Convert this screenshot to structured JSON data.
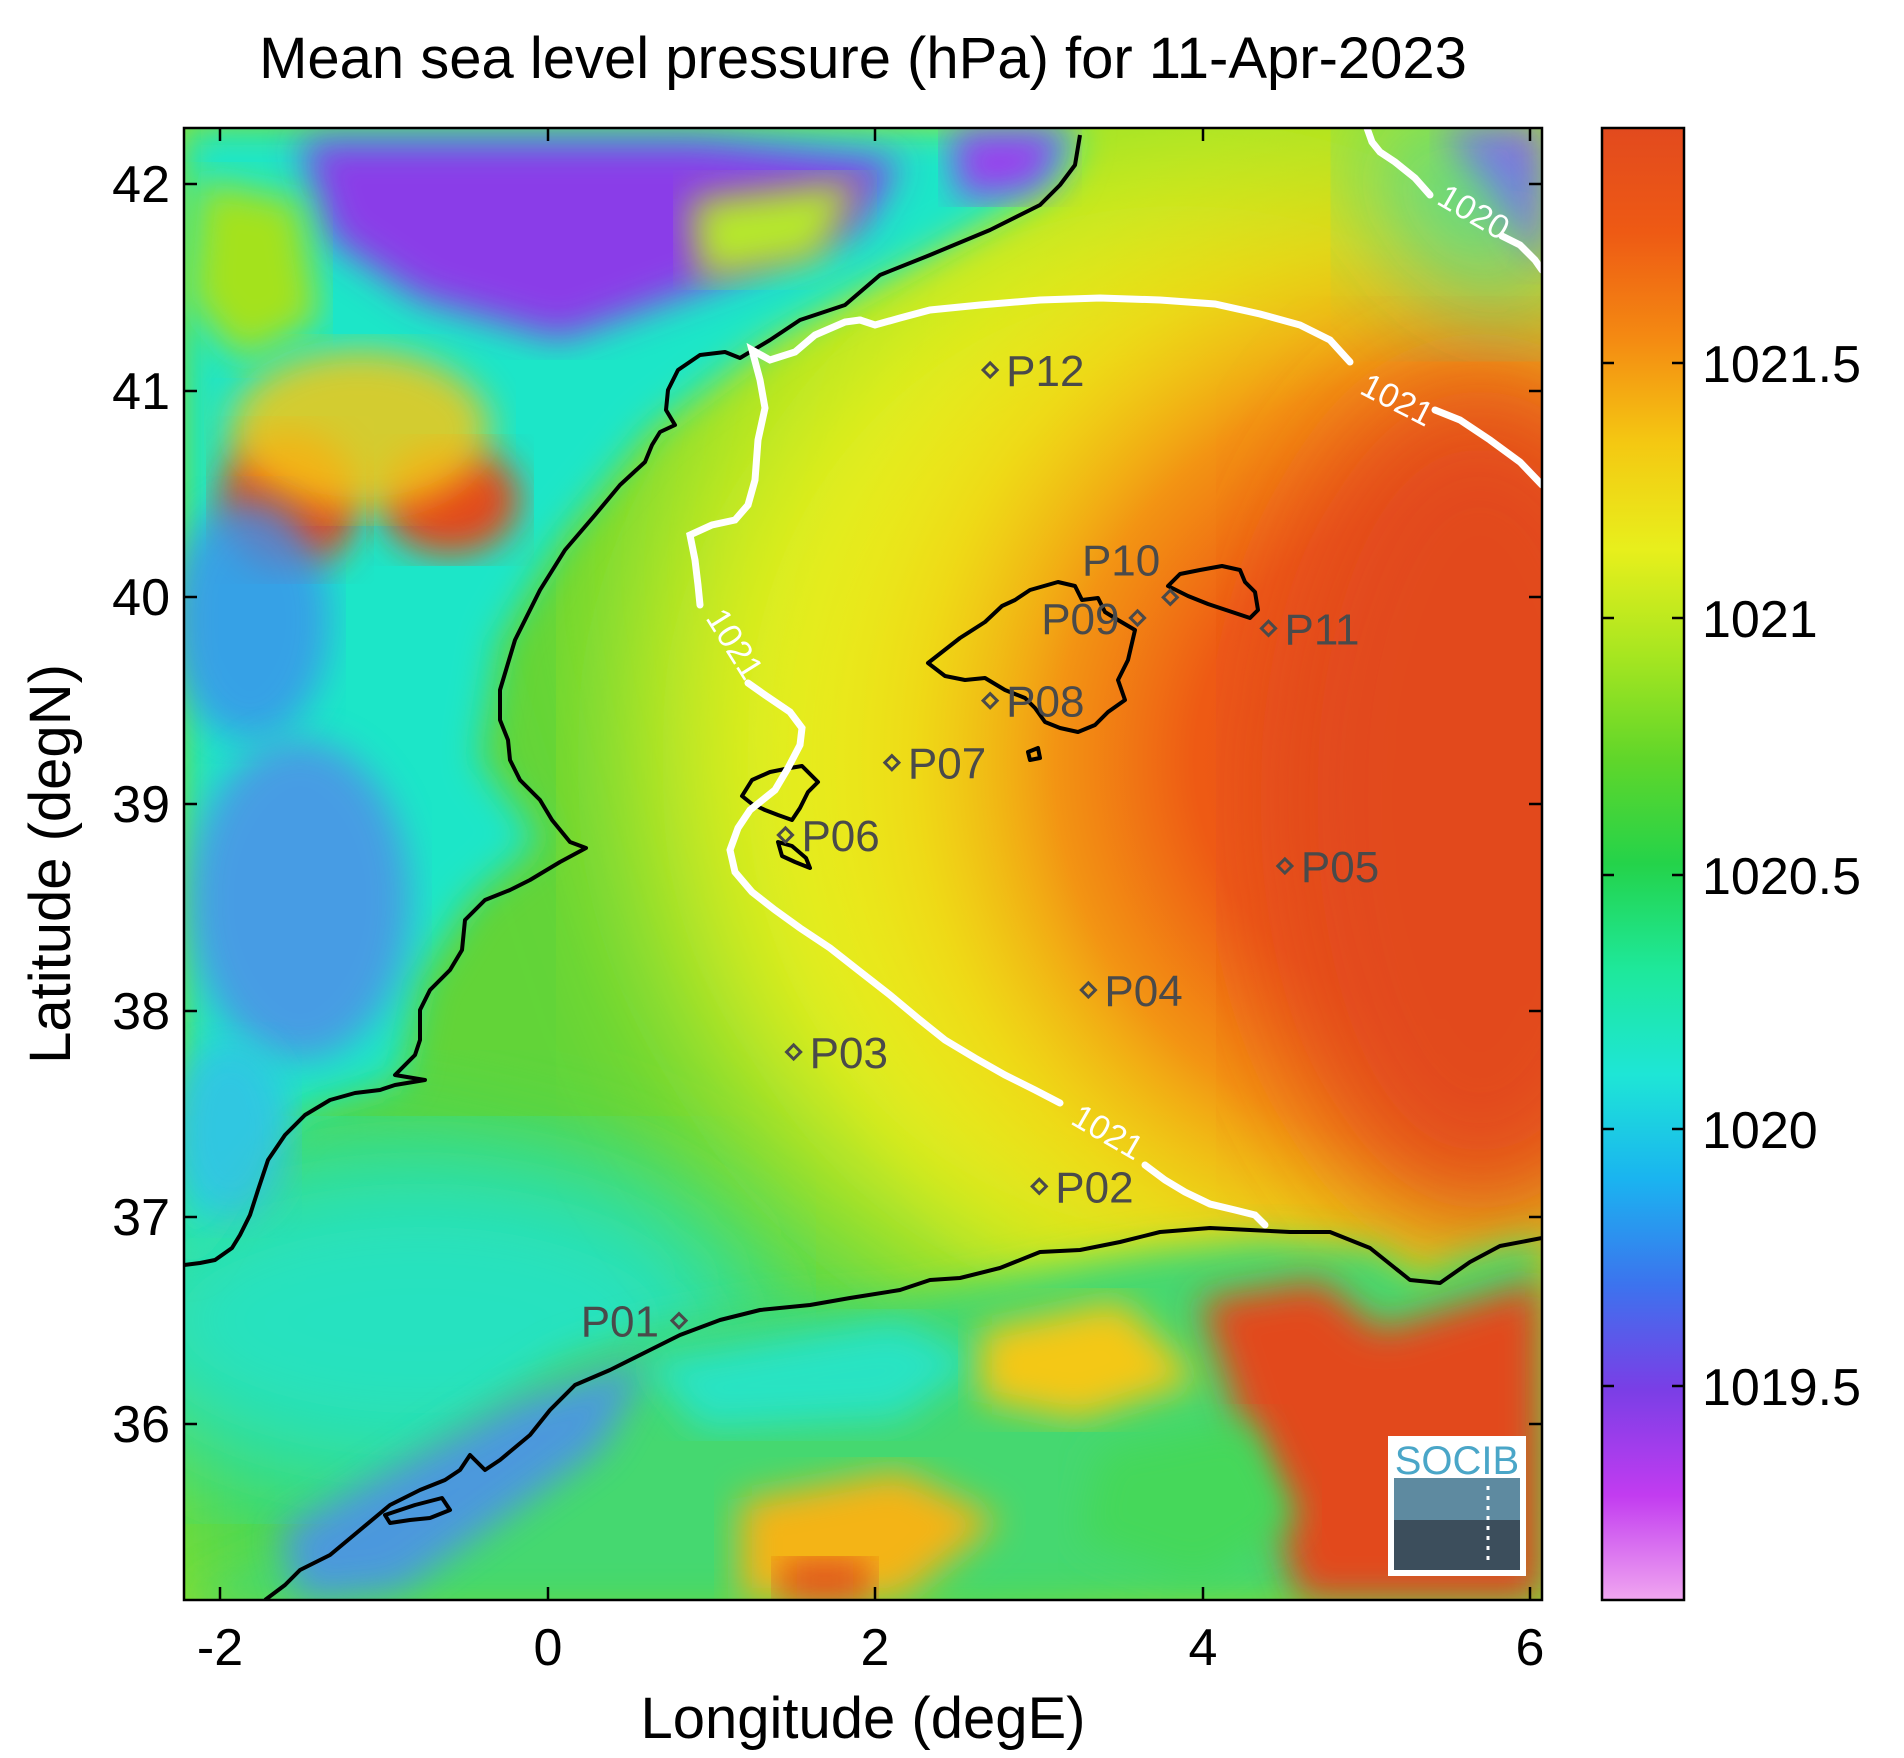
{
  "title": "Mean sea level pressure (hPa) for 11-Apr-2023",
  "xlabel": "Longitude (degE)",
  "ylabel": "Latitude (degN)",
  "x_ticks": [
    "-2",
    "0",
    "2",
    "4",
    "6"
  ],
  "y_ticks": [
    "36",
    "37",
    "38",
    "39",
    "40",
    "41",
    "42"
  ],
  "colorbar": {
    "ticks": [
      "1019.5",
      "1020",
      "1020.5",
      "1021",
      "1021.5"
    ],
    "colors": [
      "#f0a6f0",
      "#c23cf0",
      "#7a3ee6",
      "#3c73ee",
      "#1ab4f0",
      "#1ee6d6",
      "#1ee89a",
      "#24d34a",
      "#60d62a",
      "#a8e620",
      "#e8ef1c",
      "#f4c812",
      "#f48a12",
      "#ee5a14",
      "#e24a1e"
    ]
  },
  "contour_labels": [
    "1020",
    "1021",
    "1021",
    "1021"
  ],
  "points": [
    {
      "name": "P01",
      "lon": 0.8,
      "lat": 36.5
    },
    {
      "name": "P02",
      "lon": 3.0,
      "lat": 37.15
    },
    {
      "name": "P03",
      "lon": 1.5,
      "lat": 37.8
    },
    {
      "name": "P04",
      "lon": 3.3,
      "lat": 38.1
    },
    {
      "name": "P05",
      "lon": 4.5,
      "lat": 38.7
    },
    {
      "name": "P06",
      "lon": 1.45,
      "lat": 38.85
    },
    {
      "name": "P07",
      "lon": 2.1,
      "lat": 39.2
    },
    {
      "name": "P08",
      "lon": 2.7,
      "lat": 39.5
    },
    {
      "name": "P09",
      "lon": 3.6,
      "lat": 39.9
    },
    {
      "name": "P10",
      "lon": 3.8,
      "lat": 40.0
    },
    {
      "name": "P11",
      "lon": 4.4,
      "lat": 39.85
    },
    {
      "name": "P12",
      "lon": 2.7,
      "lat": 41.1
    }
  ],
  "logo": {
    "text": "SOCIB"
  },
  "colors": {
    "coast": "#000000",
    "contour": "#ffffff",
    "marker": "#4a4a4a"
  }
}
